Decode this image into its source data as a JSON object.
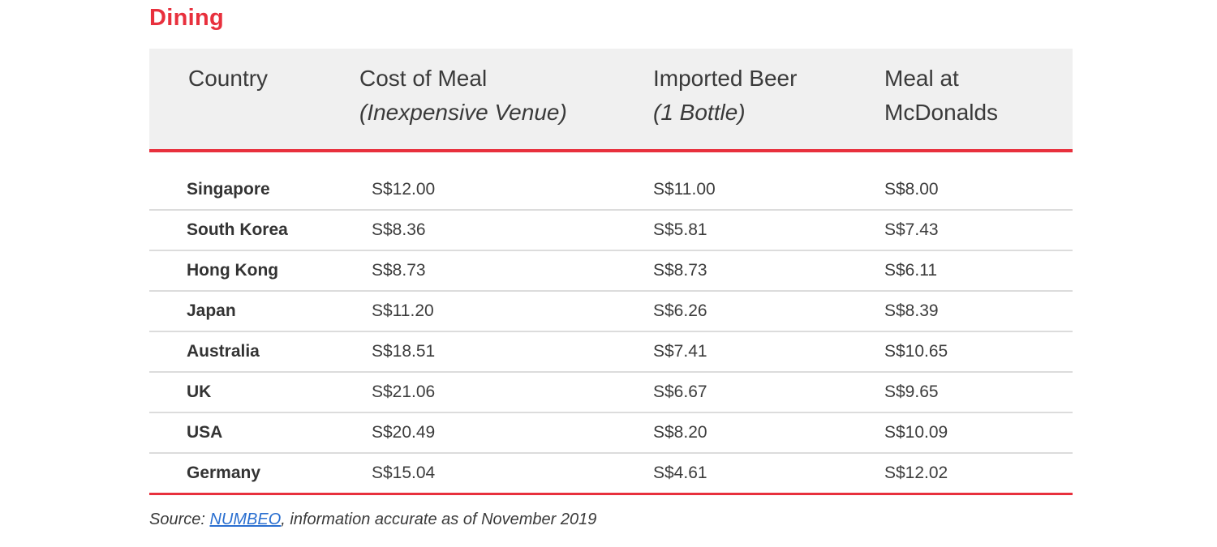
{
  "section": {
    "title": "Dining"
  },
  "table": {
    "headers": [
      {
        "main": "Country",
        "sub": ""
      },
      {
        "main": "Cost of Meal",
        "sub": "(Inexpensive Venue)"
      },
      {
        "main": "Imported Beer",
        "sub": "(1 Bottle)"
      },
      {
        "main": "Meal at",
        "sub": "McDonalds"
      }
    ],
    "rows": [
      {
        "country": "Singapore",
        "meal": "S$12.00",
        "beer": "S$11.00",
        "mcdonalds": "S$8.00"
      },
      {
        "country": "South Korea",
        "meal": "S$8.36",
        "beer": "S$5.81",
        "mcdonalds": "S$7.43"
      },
      {
        "country": "Hong Kong",
        "meal": "S$8.73",
        "beer": "S$8.73",
        "mcdonalds": "S$6.11"
      },
      {
        "country": "Japan",
        "meal": "S$11.20",
        "beer": "S$6.26",
        "mcdonalds": "S$8.39"
      },
      {
        "country": "Australia",
        "meal": "S$18.51",
        "beer": "S$7.41",
        "mcdonalds": "S$10.65"
      },
      {
        "country": "UK",
        "meal": "S$21.06",
        "beer": "S$6.67",
        "mcdonalds": "S$9.65"
      },
      {
        "country": "USA",
        "meal": "S$20.49",
        "beer": "S$8.20",
        "mcdonalds": "S$10.09"
      },
      {
        "country": "Germany",
        "meal": "S$15.04",
        "beer": "S$4.61",
        "mcdonalds": "S$12.02"
      }
    ]
  },
  "source": {
    "prefix": "Source: ",
    "link_text": "NUMBEO",
    "suffix": ", information accurate as of November 2019"
  },
  "colors": {
    "accent": "#e8303d",
    "header_bg": "#f0f0f0",
    "link": "#2a6fd0"
  }
}
